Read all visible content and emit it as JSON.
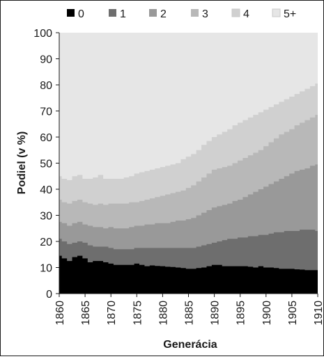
{
  "chart_data": {
    "type": "area",
    "stacked": true,
    "title": "",
    "xlabel": "Generácia",
    "ylabel": "Podiel (v %)",
    "xlim": [
      1860,
      1910
    ],
    "ylim": [
      0,
      100
    ],
    "x_ticks": [
      "1860",
      "1865",
      "1870",
      "1875",
      "1880",
      "1885",
      "1890",
      "1895",
      "1900",
      "1905",
      "1910"
    ],
    "y_ticks": [
      "0",
      "10",
      "20",
      "30",
      "40",
      "50",
      "60",
      "70",
      "80",
      "90",
      "100"
    ],
    "grid": false,
    "legend_position": "top",
    "x": [
      1860,
      1861,
      1862,
      1863,
      1864,
      1865,
      1866,
      1867,
      1868,
      1869,
      1870,
      1871,
      1872,
      1873,
      1874,
      1875,
      1876,
      1877,
      1878,
      1879,
      1880,
      1881,
      1882,
      1883,
      1884,
      1885,
      1886,
      1887,
      1888,
      1889,
      1890,
      1891,
      1892,
      1893,
      1894,
      1895,
      1896,
      1897,
      1898,
      1899,
      1900,
      1901,
      1902,
      1903,
      1904,
      1905,
      1906,
      1907,
      1908,
      1909,
      1910
    ],
    "cumulative_series": [
      {
        "name": "0",
        "color": "#000000",
        "upper": [
          14.5,
          13.5,
          12.5,
          14.0,
          14.5,
          13.5,
          12.0,
          12.5,
          12.5,
          12.0,
          11.5,
          11.0,
          11.0,
          11.0,
          11.0,
          11.5,
          11.0,
          10.5,
          10.8,
          10.6,
          10.5,
          10.3,
          10.2,
          10.0,
          9.8,
          9.5,
          9.5,
          9.8,
          10.0,
          10.5,
          11.0,
          11.0,
          10.5,
          10.5,
          10.5,
          10.5,
          10.5,
          10.3,
          10.0,
          10.5,
          10.0,
          10.0,
          9.8,
          9.5,
          9.5,
          9.5,
          9.3,
          9.2,
          9.0,
          9.0,
          9.0
        ]
      },
      {
        "name": "1",
        "color": "#6e6e6e",
        "upper": [
          21.0,
          20.0,
          19.0,
          19.5,
          20.0,
          19.5,
          18.5,
          18.0,
          18.0,
          18.0,
          17.5,
          17.0,
          17.0,
          17.0,
          17.0,
          17.5,
          17.5,
          17.5,
          17.5,
          17.5,
          17.5,
          17.5,
          17.5,
          17.5,
          17.5,
          17.5,
          17.5,
          18.0,
          18.5,
          19.0,
          19.5,
          20.0,
          20.5,
          21.0,
          21.0,
          21.5,
          21.5,
          22.0,
          22.0,
          22.5,
          22.5,
          23.0,
          23.5,
          23.5,
          24.0,
          24.0,
          24.0,
          24.5,
          24.5,
          24.5,
          24.0
        ]
      },
      {
        "name": "2",
        "color": "#999999",
        "upper": [
          27.5,
          27.0,
          26.0,
          27.0,
          27.5,
          26.5,
          26.0,
          25.5,
          25.5,
          25.0,
          25.5,
          25.0,
          25.0,
          25.0,
          25.5,
          26.0,
          26.0,
          26.5,
          26.5,
          27.0,
          27.0,
          27.0,
          27.5,
          28.0,
          28.0,
          28.5,
          29.0,
          30.0,
          31.0,
          32.0,
          33.0,
          33.5,
          34.0,
          34.5,
          35.5,
          36.0,
          37.0,
          38.0,
          39.0,
          40.0,
          41.0,
          42.0,
          43.0,
          44.0,
          45.0,
          46.0,
          47.0,
          47.5,
          48.0,
          49.0,
          49.5
        ]
      },
      {
        "name": "3",
        "color": "#b8b8b8",
        "upper": [
          36.0,
          35.0,
          34.5,
          35.5,
          36.0,
          35.0,
          34.5,
          34.0,
          34.5,
          34.0,
          34.5,
          34.5,
          34.5,
          34.5,
          35.0,
          35.0,
          35.5,
          36.0,
          36.5,
          37.0,
          37.5,
          38.0,
          38.5,
          39.0,
          39.5,
          40.5,
          41.5,
          43.0,
          44.5,
          46.0,
          47.5,
          48.0,
          48.5,
          49.0,
          50.0,
          51.0,
          52.0,
          53.0,
          54.0,
          55.0,
          56.5,
          58.0,
          59.5,
          61.0,
          62.0,
          63.0,
          64.5,
          65.5,
          66.5,
          67.5,
          68.5
        ]
      },
      {
        "name": "4",
        "color": "#d0d0d0",
        "upper": [
          45.0,
          44.0,
          43.5,
          45.0,
          45.5,
          44.0,
          44.0,
          44.5,
          45.5,
          44.0,
          44.0,
          44.0,
          44.0,
          44.5,
          45.0,
          46.0,
          46.5,
          47.0,
          47.5,
          48.0,
          48.5,
          49.0,
          49.5,
          50.0,
          51.5,
          52.5,
          53.5,
          55.0,
          57.0,
          58.5,
          60.0,
          61.0,
          62.0,
          63.0,
          64.5,
          65.5,
          66.5,
          67.5,
          68.5,
          69.5,
          70.5,
          71.5,
          72.5,
          73.5,
          74.5,
          75.5,
          76.5,
          77.5,
          78.5,
          79.5,
          80.5
        ]
      },
      {
        "name": "5+",
        "color": "#e6e6e6",
        "upper": [
          100,
          100,
          100,
          100,
          100,
          100,
          100,
          100,
          100,
          100,
          100,
          100,
          100,
          100,
          100,
          100,
          100,
          100,
          100,
          100,
          100,
          100,
          100,
          100,
          100,
          100,
          100,
          100,
          100,
          100,
          100,
          100,
          100,
          100,
          100,
          100,
          100,
          100,
          100,
          100,
          100,
          100,
          100,
          100,
          100,
          100,
          100,
          100,
          100,
          100,
          100
        ]
      }
    ]
  }
}
